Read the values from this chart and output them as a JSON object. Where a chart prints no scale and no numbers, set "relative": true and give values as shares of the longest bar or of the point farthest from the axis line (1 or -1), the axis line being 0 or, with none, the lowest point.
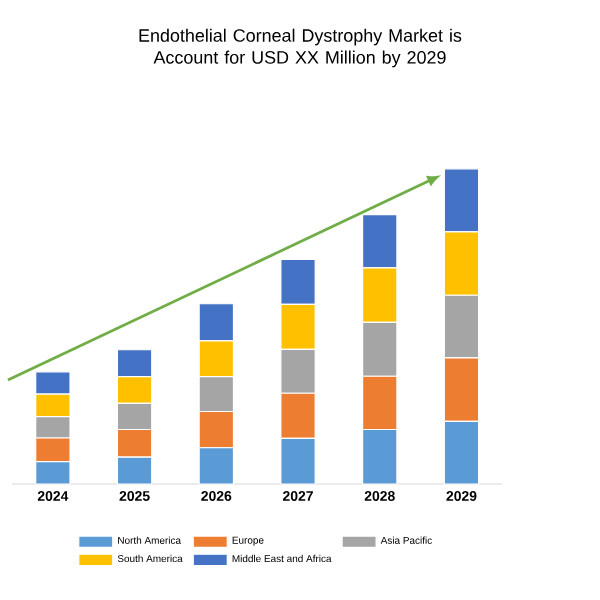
{
  "chart_data": {
    "type": "bar",
    "title": "Endothelial Corneal Dystrophy Market is\nAccount for USD XX Million by 2029",
    "relative": true,
    "stacked": true,
    "legend": "bottom",
    "categories": [
      "2024",
      "2025",
      "2026",
      "2027",
      "2028",
      "2029"
    ],
    "series": [
      {
        "name": "North America",
        "color": "#5b9bd5",
        "values": [
          0.071,
          0.085,
          0.115,
          0.145,
          0.173,
          0.199
        ]
      },
      {
        "name": "Europe",
        "color": "#ed7d31",
        "values": [
          0.075,
          0.088,
          0.115,
          0.143,
          0.169,
          0.201
        ]
      },
      {
        "name": "Asia Pacific",
        "color": "#a5a5a5",
        "values": [
          0.068,
          0.083,
          0.111,
          0.139,
          0.171,
          0.199
        ]
      },
      {
        "name": "South America",
        "color": "#ffc000",
        "values": [
          0.071,
          0.085,
          0.113,
          0.143,
          0.173,
          0.201
        ]
      },
      {
        "name": "Middle East and Africa",
        "color": "#4472c4",
        "values": [
          0.071,
          0.085,
          0.118,
          0.143,
          0.169,
          0.2
        ]
      }
    ]
  }
}
